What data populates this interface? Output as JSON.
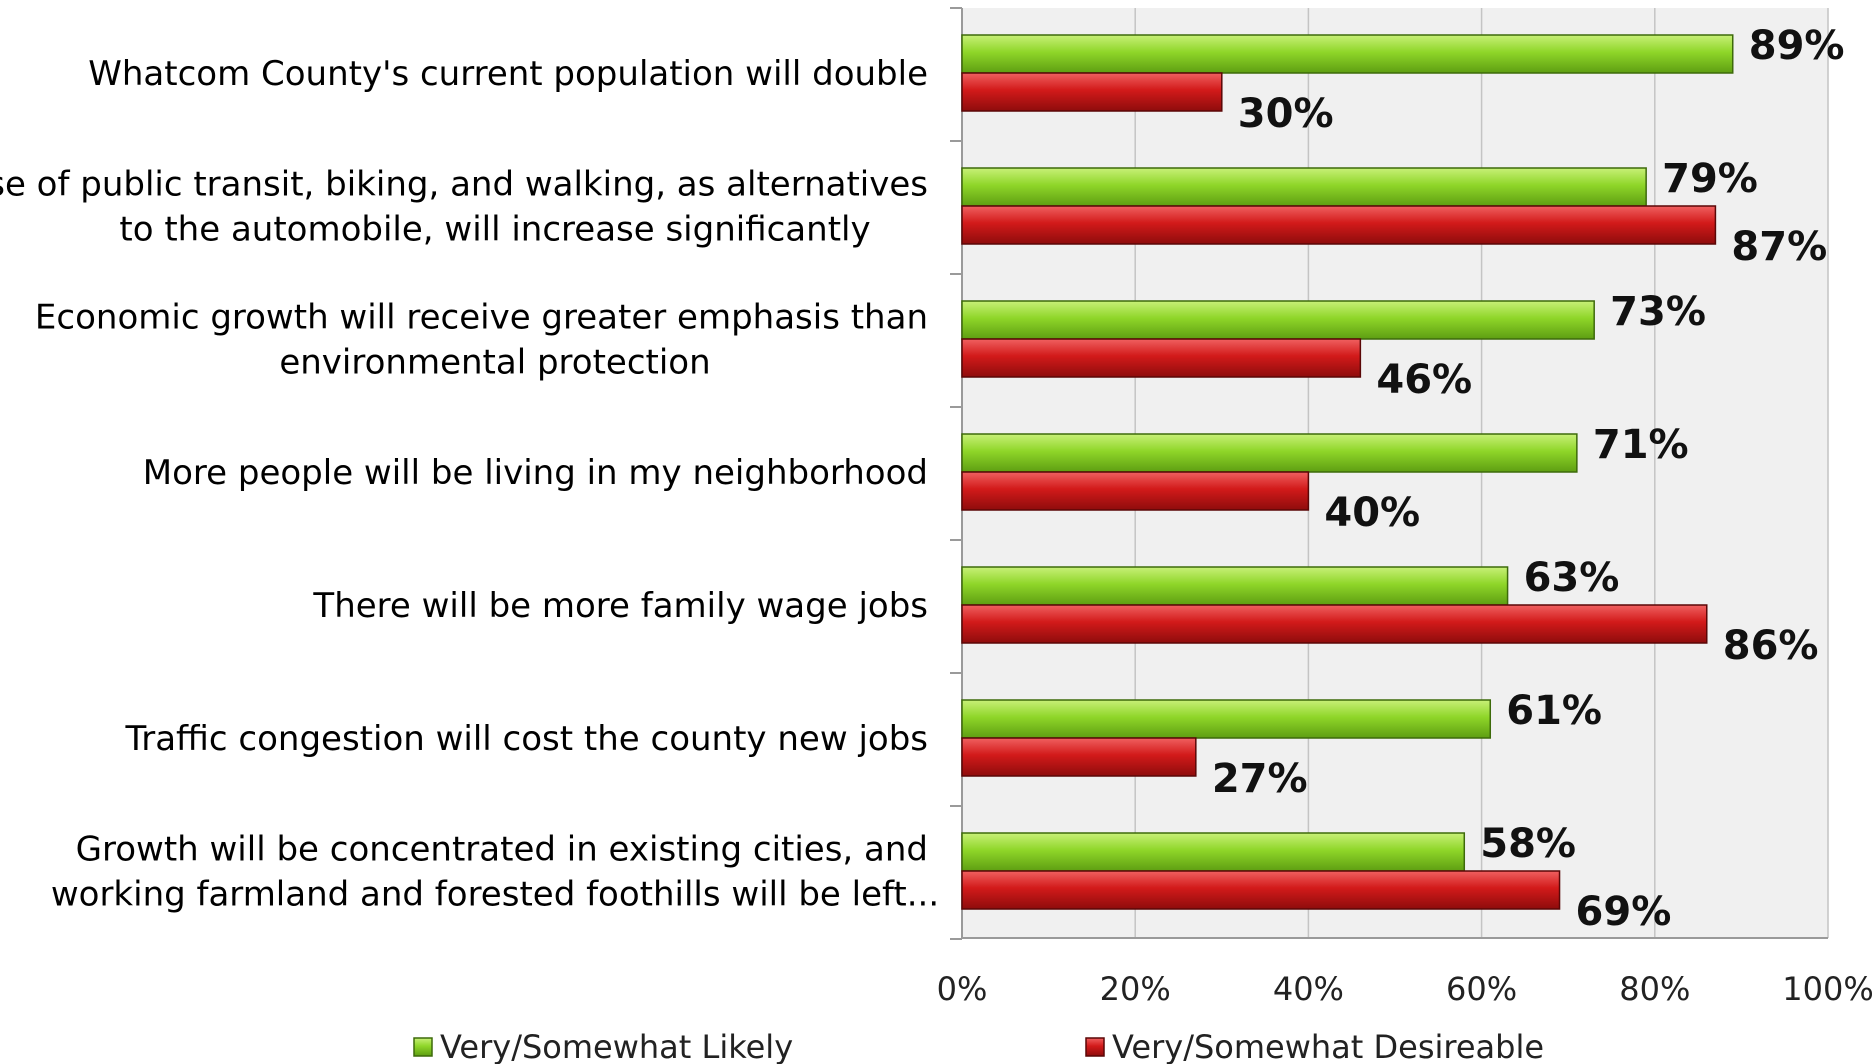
{
  "chart_data": {
    "type": "bar",
    "orientation": "horizontal",
    "categories": [
      [
        "Whatcom County's current population will double"
      ],
      [
        "Use of public transit, biking, and walking, as alternatives",
        "to the automobile, will increase significantly"
      ],
      [
        "Economic growth will receive greater emphasis than",
        "environmental protection"
      ],
      [
        "More people will be living in my neighborhood"
      ],
      [
        "There will be more family wage jobs"
      ],
      [
        "Traffic congestion will cost the county new jobs"
      ],
      [
        "Growth will be concentrated in existing cities, and",
        "working farmland and forested foothills will be left..."
      ]
    ],
    "series": [
      {
        "name": "Very/Somewhat Likely",
        "color": "#8fd629",
        "values": [
          89,
          79,
          73,
          71,
          63,
          61,
          58
        ],
        "labels": [
          "89%",
          "79%",
          "73%",
          "71%",
          "63%",
          "61%",
          "58%"
        ]
      },
      {
        "name": "Very/Somewhat Desireable",
        "color": "#d21a1a",
        "values": [
          30,
          87,
          46,
          40,
          86,
          27,
          69
        ],
        "labels": [
          "30%",
          "87%",
          "46%",
          "40%",
          "86%",
          "27%",
          "69%"
        ]
      }
    ],
    "xlim": [
      0,
      100
    ],
    "xticks": [
      "0%",
      "20%",
      "40%",
      "60%",
      "80%",
      "100%"
    ],
    "grid": true,
    "plot_background": "#f0f0f0",
    "legend_position": "bottom"
  }
}
